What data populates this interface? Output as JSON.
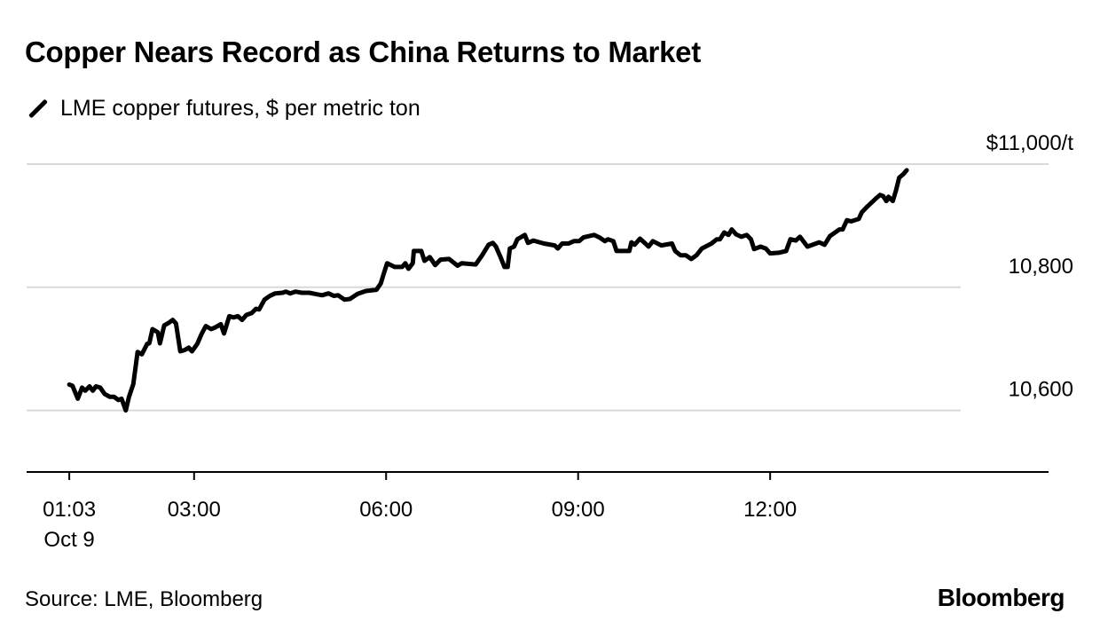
{
  "chart_data": {
    "type": "line",
    "title": "Copper Nears Record as China Returns to Market",
    "legend": [
      "LME copper futures, $ per metric ton"
    ],
    "legend_placement": "top-left",
    "source": "Source: LME, Bloomberg",
    "brand": "Bloomberg",
    "xlabel": "",
    "ylabel": "",
    "x_unit": "minutes since 01:03 Oct 9",
    "xlim": [
      -40,
      918
    ],
    "ylim": [
      10500,
      11000
    ],
    "grid": true,
    "x_ticks": [
      {
        "value": 0,
        "label": "01:03",
        "sublabel": "Oct 9"
      },
      {
        "value": 117,
        "label": "03:00"
      },
      {
        "value": 297,
        "label": "06:00"
      },
      {
        "value": 477,
        "label": "09:00"
      },
      {
        "value": 657,
        "label": "12:00"
      }
    ],
    "y_ticks": [
      {
        "value": 10600,
        "label": "10,600"
      },
      {
        "value": 10800,
        "label": "10,800"
      },
      {
        "value": 11000,
        "label": "$11,000/t"
      }
    ],
    "series": [
      {
        "name": "LME copper futures, $ per metric ton",
        "color": "#000000",
        "x": [
          0,
          3,
          8,
          12,
          15,
          19,
          22,
          25,
          29,
          33,
          38,
          42,
          46,
          49,
          53,
          56,
          60,
          64,
          68,
          73,
          75,
          78,
          83,
          85,
          89,
          93,
          97,
          100,
          104,
          108,
          112,
          115,
          120,
          124,
          128,
          133,
          137,
          142,
          145,
          150,
          154,
          158,
          162,
          166,
          171,
          175,
          178,
          183,
          188,
          193,
          200,
          203,
          207,
          212,
          218,
          225,
          231,
          237,
          243,
          248,
          252,
          258,
          263,
          270,
          278,
          288,
          292,
          295,
          298,
          305,
          312,
          315,
          318,
          322,
          323,
          330,
          333,
          338,
          343,
          348,
          356,
          364,
          368,
          381,
          387,
          393,
          397,
          400,
          405,
          408,
          411,
          413,
          417,
          420,
          423,
          427,
          430,
          435,
          445,
          455,
          458,
          462,
          468,
          473,
          478,
          482,
          492,
          497,
          502,
          505,
          510,
          513,
          525,
          527,
          530,
          535,
          540,
          543,
          547,
          555,
          565,
          568,
          573,
          578,
          583,
          588,
          593,
          602,
          607,
          610,
          614,
          618,
          621,
          625,
          630,
          635,
          639,
          642,
          648,
          653,
          657,
          665,
          672,
          676,
          681,
          685,
          692,
          703,
          708,
          713,
          722,
          725,
          729,
          733,
          740,
          743,
          748,
          756,
          760,
          763,
          766,
          768,
          772,
          775,
          778,
          782,
          785
        ],
        "y": [
          10642,
          10640,
          10619,
          10637,
          10632,
          10639,
          10632,
          10639,
          10637,
          10627,
          10622,
          10622,
          10617,
          10619,
          10600,
          10622,
          10643,
          10695,
          10691,
          10708,
          10709,
          10732,
          10727,
          10709,
          10738,
          10742,
          10747,
          10741,
          10696,
          10698,
          10702,
          10696,
          10708,
          10724,
          10737,
          10732,
          10735,
          10740,
          10725,
          10753,
          10751,
          10753,
          10747,
          10755,
          10758,
          10765,
          10764,
          10780,
          10786,
          10790,
          10791,
          10793,
          10790,
          10793,
          10791,
          10791,
          10789,
          10787,
          10790,
          10786,
          10787,
          10780,
          10781,
          10789,
          10794,
          10796,
          10806,
          10823,
          10839,
          10833,
          10833,
          10839,
          10830,
          10839,
          10859,
          10859,
          10843,
          10849,
          10836,
          10845,
          10846,
          10835,
          10839,
          10837,
          10852,
          10869,
          10872,
          10866,
          10846,
          10833,
          10833,
          10863,
          10866,
          10878,
          10881,
          10885,
          10872,
          10876,
          10871,
          10868,
          10863,
          10871,
          10871,
          10875,
          10875,
          10881,
          10885,
          10881,
          10875,
          10878,
          10875,
          10859,
          10859,
          10873,
          10869,
          10879,
          10871,
          10866,
          10875,
          10868,
          10871,
          10859,
          10852,
          10852,
          10846,
          10852,
          10863,
          10871,
          10878,
          10878,
          10889,
          10885,
          10894,
          10886,
          10882,
          10885,
          10878,
          10862,
          10866,
          10863,
          10855,
          10856,
          10859,
          10878,
          10876,
          10882,
          10866,
          10873,
          10869,
          10883,
          10894,
          10894,
          10909,
          10907,
          10911,
          10922,
          10931,
          10944,
          10950,
          10948,
          10940,
          10947,
          10940,
          10957,
          10978,
          10984,
          10990
        ]
      }
    ]
  }
}
